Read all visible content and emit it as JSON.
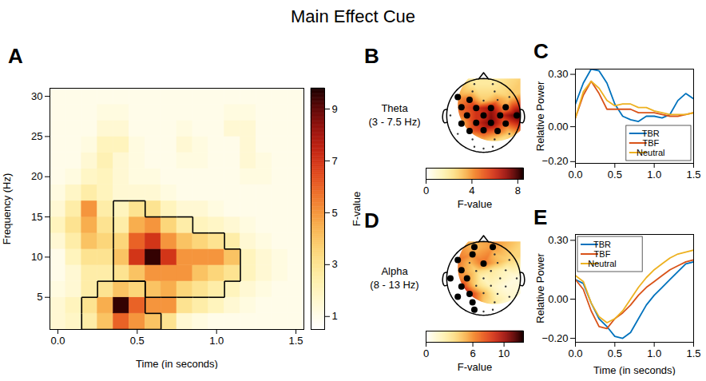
{
  "title": "Main Effect Cue",
  "chart_data": [
    {
      "panel": "A",
      "type": "heatmap",
      "xlabel": "Time (in seconds)",
      "ylabel": "Frequency (Hz)",
      "xlim": [
        -0.05,
        1.55
      ],
      "ylim": [
        1,
        31
      ],
      "xticks": [
        0,
        0.5,
        1,
        1.5
      ],
      "yticks": [
        5,
        10,
        15,
        20,
        25,
        30
      ],
      "x": [
        0,
        0.1,
        0.2,
        0.3,
        0.4,
        0.5,
        0.6,
        0.7,
        0.8,
        0.9,
        1,
        1.1,
        1.2,
        1.3,
        1.4,
        1.5
      ],
      "y": [
        2,
        4,
        6,
        8,
        10,
        12,
        14,
        16,
        18,
        20,
        22,
        24,
        26,
        28,
        30
      ],
      "values": [
        [
          1.5,
          1.8,
          2.5,
          4,
          6,
          5,
          4,
          3,
          1.5,
          1.2,
          1,
          1,
          1,
          1,
          1,
          1
        ],
        [
          1.5,
          2,
          3,
          4.5,
          9.5,
          6,
          5,
          5,
          3,
          2.5,
          2,
          1.5,
          1.2,
          1,
          1,
          1
        ],
        [
          1.2,
          1.5,
          2.5,
          3,
          4,
          3.5,
          4,
          4.5,
          3.5,
          3,
          2.5,
          2,
          1.5,
          1.2,
          1,
          1
        ],
        [
          1,
          1.5,
          2.5,
          2.5,
          3,
          4,
          5,
          5,
          5,
          4,
          3.5,
          3,
          2,
          1.5,
          1.2,
          1
        ],
        [
          1,
          2,
          3,
          3,
          4,
          7,
          9.5,
          7,
          5,
          5,
          5,
          4,
          2,
          1.5,
          1.2,
          1
        ],
        [
          1.5,
          2.5,
          4,
          3.5,
          3.5,
          6,
          7,
          5,
          4,
          3.5,
          3,
          2.5,
          1.5,
          1.2,
          1,
          1
        ],
        [
          2,
          3,
          4.5,
          3,
          2.5,
          4.5,
          5,
          3.5,
          2.5,
          2,
          1.8,
          1.5,
          1.2,
          1,
          1,
          1
        ],
        [
          1.5,
          2.5,
          5,
          2.5,
          2,
          3,
          3,
          2,
          1.5,
          1.5,
          1.2,
          1,
          1,
          1,
          1,
          1
        ],
        [
          1.2,
          1.8,
          2.5,
          2,
          1.5,
          1.5,
          1.5,
          1.2,
          1,
          1,
          1,
          1,
          1,
          1,
          1,
          1
        ],
        [
          1,
          1.2,
          1.8,
          2,
          1.5,
          1.2,
          1.2,
          1,
          1,
          1,
          1,
          1,
          1.2,
          1.2,
          1,
          1
        ],
        [
          1,
          1,
          1.5,
          2.2,
          1.5,
          1.2,
          1,
          1,
          1.2,
          1.2,
          1,
          1,
          1.5,
          1.2,
          1,
          1
        ],
        [
          1,
          1,
          1.2,
          2,
          2,
          1.2,
          1,
          1,
          1.5,
          1.2,
          1,
          1,
          1.5,
          1,
          1,
          1
        ],
        [
          1,
          1,
          1,
          1.5,
          1.5,
          1,
          1,
          1,
          1.2,
          1,
          1,
          1.5,
          1.5,
          1,
          1,
          1
        ],
        [
          1,
          1,
          1,
          1.2,
          1.2,
          1,
          1,
          1,
          1,
          1,
          1,
          1.2,
          1.2,
          1,
          1,
          1
        ],
        [
          1,
          1,
          1,
          1,
          1,
          1,
          1,
          1,
          1,
          1,
          1,
          1,
          1,
          1,
          1,
          1
        ]
      ],
      "clusters": [
        [
          0,
          0,
          1,
          1,
          1,
          1,
          1,
          0,
          0,
          0,
          0,
          0,
          0,
          0,
          0,
          0
        ],
        [
          0,
          0,
          1,
          1,
          1,
          1,
          0,
          0,
          0,
          0,
          0,
          0,
          0,
          0,
          0,
          0
        ],
        [
          0,
          0,
          0,
          1,
          1,
          1,
          2,
          2,
          2,
          2,
          2,
          0,
          0,
          0,
          0,
          0
        ],
        [
          0,
          0,
          0,
          0,
          2,
          2,
          2,
          2,
          2,
          2,
          2,
          2,
          0,
          0,
          0,
          0
        ],
        [
          0,
          0,
          0,
          0,
          2,
          2,
          2,
          2,
          2,
          2,
          2,
          2,
          0,
          0,
          0,
          0
        ],
        [
          0,
          0,
          0,
          0,
          2,
          2,
          2,
          2,
          2,
          2,
          2,
          0,
          0,
          0,
          0,
          0
        ],
        [
          0,
          0,
          0,
          0,
          2,
          2,
          2,
          2,
          2,
          0,
          0,
          0,
          0,
          0,
          0,
          0
        ],
        [
          0,
          0,
          0,
          0,
          2,
          2,
          0,
          0,
          0,
          0,
          0,
          0,
          0,
          0,
          0,
          0
        ],
        [
          0,
          0,
          0,
          0,
          0,
          0,
          0,
          0,
          0,
          0,
          0,
          0,
          0,
          0,
          0,
          0
        ],
        [
          0,
          0,
          0,
          0,
          0,
          0,
          0,
          0,
          0,
          0,
          0,
          0,
          0,
          0,
          0,
          0
        ],
        [
          0,
          0,
          0,
          0,
          0,
          0,
          0,
          0,
          0,
          0,
          0,
          0,
          0,
          0,
          0,
          0
        ],
        [
          0,
          0,
          0,
          0,
          0,
          0,
          0,
          0,
          0,
          0,
          0,
          0,
          0,
          0,
          0,
          0
        ],
        [
          0,
          0,
          0,
          0,
          0,
          0,
          0,
          0,
          0,
          0,
          0,
          0,
          0,
          0,
          0,
          0
        ],
        [
          0,
          0,
          0,
          0,
          0,
          0,
          0,
          0,
          0,
          0,
          0,
          0,
          0,
          0,
          0,
          0
        ],
        [
          0,
          0,
          0,
          0,
          0,
          0,
          0,
          0,
          0,
          0,
          0,
          0,
          0,
          0,
          0,
          0
        ]
      ],
      "colorbar": {
        "label": "F-value",
        "range": [
          0.5,
          9.8
        ],
        "ticks": [
          1,
          3,
          5,
          7,
          9
        ]
      }
    },
    {
      "panel": "B",
      "type": "topomap",
      "title": "Theta (3 - 7.5 Hz)",
      "electrodes": {
        "x": [
          -0.25,
          0.25,
          -0.3,
          0.3,
          -0.7,
          -0.38,
          0,
          0.38,
          0.7,
          -0.6,
          -0.2,
          0.2,
          0.6,
          -0.9,
          -0.45,
          0,
          0.45,
          0.9,
          -0.6,
          -0.2,
          0.2,
          0.6,
          -0.7,
          -0.38,
          0,
          0.38,
          0.7,
          -0.3,
          0.3,
          -0.25,
          0,
          0.25
        ],
        "y": [
          0.85,
          0.85,
          0.65,
          0.65,
          0.5,
          0.42,
          0.4,
          0.42,
          0.5,
          0.22,
          0.2,
          0.2,
          0.22,
          0,
          0,
          0,
          0,
          0,
          -0.22,
          -0.2,
          -0.2,
          -0.22,
          -0.5,
          -0.42,
          -0.4,
          -0.42,
          -0.5,
          -0.65,
          -0.65,
          -0.85,
          -0.9,
          -0.85
        ],
        "values": [
          2,
          2,
          3,
          2.5,
          4,
          5,
          3,
          4,
          3,
          5,
          6,
          7,
          4,
          4,
          5,
          6,
          6,
          8,
          3.5,
          6,
          7.5,
          5,
          2,
          5,
          6,
          5,
          3,
          3,
          3,
          1.5,
          1.5,
          1.5
        ],
        "significant": [
          false,
          false,
          false,
          false,
          true,
          true,
          false,
          false,
          false,
          true,
          true,
          true,
          true,
          false,
          true,
          true,
          true,
          true,
          true,
          true,
          true,
          true,
          false,
          true,
          true,
          true,
          false,
          false,
          false,
          false,
          false,
          false
        ]
      },
      "colorbar": {
        "label": "F-value",
        "range": [
          0,
          8.5
        ],
        "ticks": [
          0,
          4,
          8
        ]
      }
    },
    {
      "panel": "C",
      "type": "line",
      "ylabel": "Relative Power",
      "xlim": [
        0,
        1.5
      ],
      "ylim": [
        -0.21,
        0.33
      ],
      "xticks": [
        0,
        0.5,
        1,
        1.5
      ],
      "yticks": [
        -0.2,
        0,
        0.3
      ],
      "legend": "lower right",
      "x": [
        0,
        0.1,
        0.2,
        0.3,
        0.4,
        0.5,
        0.6,
        0.7,
        0.8,
        0.9,
        1,
        1.1,
        1.2,
        1.3,
        1.4,
        1.5
      ],
      "series": [
        {
          "name": "TBR",
          "color": "#0072bd",
          "values": [
            0.13,
            0.25,
            0.33,
            0.32,
            0.25,
            0.13,
            0.06,
            0.04,
            0.03,
            0.06,
            0.06,
            0.05,
            0.07,
            0.15,
            0.19,
            0.16
          ]
        },
        {
          "name": "TBF",
          "color": "#d95319",
          "values": [
            0.05,
            0.18,
            0.26,
            0.19,
            0.1,
            0.1,
            0.1,
            0.1,
            0.08,
            0.08,
            0.08,
            0.07,
            0.06,
            0.06,
            0.07,
            0.08
          ]
        },
        {
          "name": "Neutral",
          "color": "#edb120",
          "values": [
            0.05,
            0.2,
            0.26,
            0.22,
            0.15,
            0.12,
            0.13,
            0.13,
            0.11,
            0.11,
            0.09,
            0.08,
            0.07,
            0.07,
            0.07,
            0.08
          ]
        }
      ]
    },
    {
      "panel": "D",
      "type": "topomap",
      "title": "Alpha (8 - 13 Hz)",
      "electrodes": {
        "x": [
          -0.25,
          0.25,
          -0.3,
          0.3,
          -0.7,
          -0.38,
          0,
          0.38,
          0.7,
          -0.6,
          -0.2,
          0.2,
          0.6,
          -0.9,
          -0.45,
          0,
          0.45,
          0.9,
          -0.6,
          -0.2,
          0.2,
          0.6,
          -0.7,
          -0.38,
          0,
          0.38,
          0.7,
          -0.3,
          0.3,
          -0.25,
          0,
          0.25
        ],
        "y": [
          0.85,
          0.85,
          0.65,
          0.65,
          0.5,
          0.42,
          0.4,
          0.42,
          0.5,
          0.22,
          0.2,
          0.2,
          0.22,
          0,
          0,
          0,
          0,
          0,
          -0.22,
          -0.2,
          -0.2,
          -0.22,
          -0.5,
          -0.42,
          -0.4,
          -0.42,
          -0.5,
          -0.65,
          -0.65,
          -0.85,
          -0.9,
          -0.85
        ],
        "values": [
          5,
          6,
          6,
          5,
          7,
          5,
          7,
          5,
          4,
          6,
          4,
          3,
          2,
          7,
          6,
          2,
          2,
          1,
          9,
          4,
          2,
          1,
          10,
          9,
          5,
          2,
          1.5,
          8,
          3,
          6,
          4,
          2
        ],
        "significant": [
          true,
          true,
          true,
          false,
          true,
          false,
          true,
          false,
          false,
          true,
          false,
          false,
          false,
          true,
          true,
          false,
          false,
          false,
          true,
          false,
          false,
          false,
          true,
          true,
          false,
          false,
          false,
          true,
          false,
          true,
          false,
          false
        ]
      },
      "colorbar": {
        "label": "F-value",
        "range": [
          0,
          12.5
        ],
        "ticks": [
          0,
          6,
          10
        ]
      }
    },
    {
      "panel": "E",
      "type": "line",
      "xlabel": "Time (in seconds)",
      "ylabel": "Relative Power",
      "xlim": [
        0,
        1.5
      ],
      "ylim": [
        -0.22,
        0.33
      ],
      "xticks": [
        0,
        0.5,
        1,
        1.5
      ],
      "yticks": [
        -0.2,
        0,
        0.3
      ],
      "legend": "upper left",
      "x": [
        0,
        0.1,
        0.2,
        0.3,
        0.4,
        0.5,
        0.6,
        0.7,
        0.8,
        0.9,
        1,
        1.1,
        1.2,
        1.3,
        1.4,
        1.5
      ],
      "series": [
        {
          "name": "TBR",
          "color": "#0072bd",
          "values": [
            0.1,
            0.08,
            -0.02,
            -0.1,
            -0.14,
            -0.19,
            -0.2,
            -0.17,
            -0.1,
            -0.03,
            0.02,
            0.06,
            0.1,
            0.14,
            0.18,
            0.19
          ]
        },
        {
          "name": "TBF",
          "color": "#d95319",
          "values": [
            0.1,
            0.05,
            -0.06,
            -0.14,
            -0.15,
            -0.1,
            -0.07,
            -0.03,
            0.02,
            0.06,
            0.09,
            0.12,
            0.15,
            0.17,
            0.19,
            0.2
          ]
        },
        {
          "name": "Neutral",
          "color": "#edb120",
          "values": [
            0.12,
            0.09,
            -0.02,
            -0.09,
            -0.12,
            -0.1,
            -0.06,
            0,
            0.06,
            0.11,
            0.15,
            0.18,
            0.21,
            0.23,
            0.24,
            0.25
          ]
        }
      ]
    }
  ]
}
